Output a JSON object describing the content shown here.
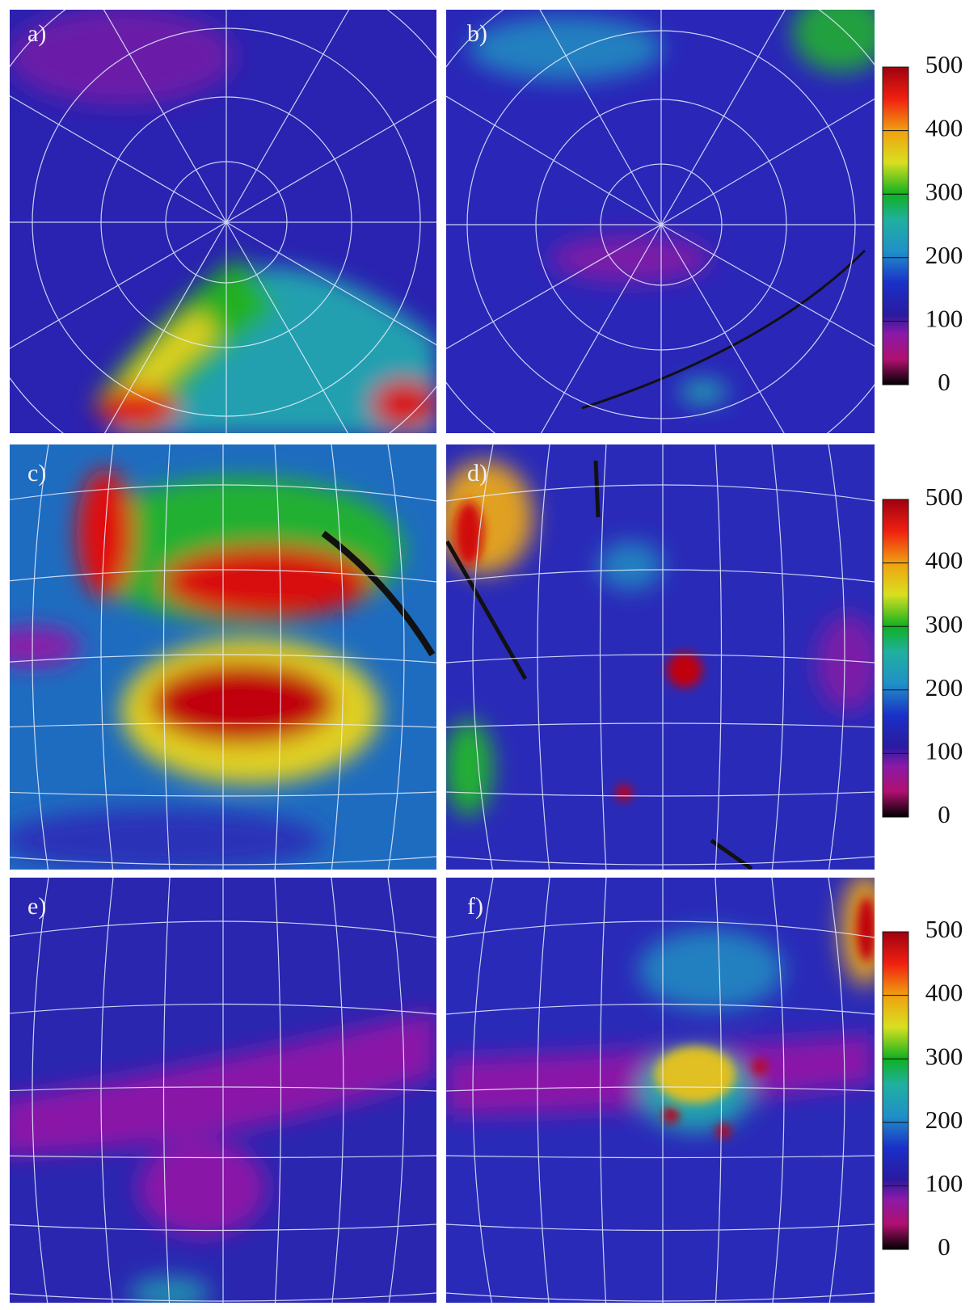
{
  "panels": [
    {
      "label": "a)"
    },
    {
      "label": "b)"
    },
    {
      "label": "c)"
    },
    {
      "label": "d)"
    },
    {
      "label": "e)"
    },
    {
      "label": "f)"
    }
  ],
  "colorbars": [
    {
      "lim": [
        0,
        500
      ],
      "ticks": [
        0,
        100,
        200,
        300,
        400,
        500
      ]
    },
    {
      "lim": [
        0,
        500
      ],
      "ticks": [
        0,
        100,
        200,
        300,
        400,
        500
      ]
    },
    {
      "lim": [
        0,
        500
      ],
      "ticks": [
        0,
        100,
        200,
        300,
        400,
        500
      ]
    }
  ]
}
